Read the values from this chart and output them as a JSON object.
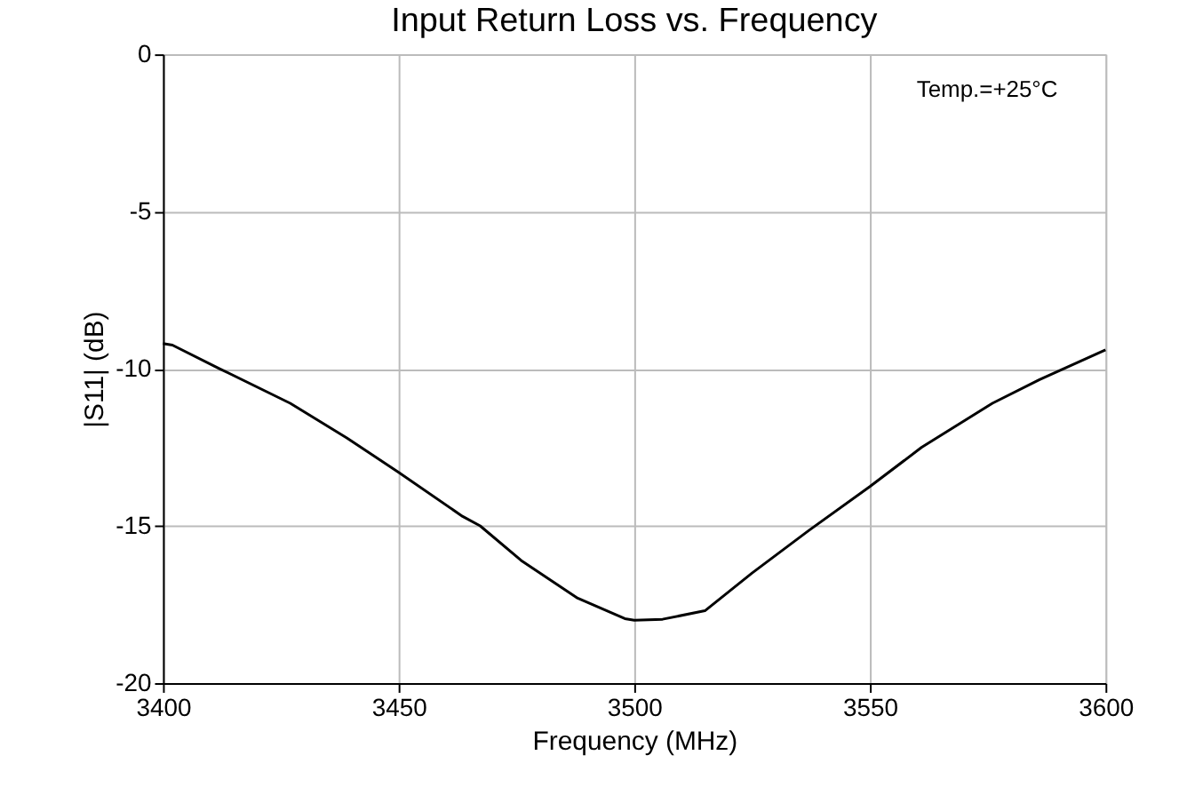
{
  "chart_data": {
    "type": "line",
    "title": "Input Return Loss vs. Frequency",
    "xlabel": "Frequency (MHz)",
    "ylabel": "|S11| (dB)",
    "annotations": [
      "Temp.=+25°C"
    ],
    "series": [
      {
        "color": "#000000",
        "x": [
          3400,
          3402,
          3412,
          3427,
          3439,
          3450,
          3463.6,
          3467.3,
          3476,
          3488,
          3498,
          3500,
          3506,
          3515,
          3525,
          3537,
          3550,
          3561,
          3576,
          3586,
          3600
        ],
        "values": [
          -9.2,
          -9.25,
          -10.0,
          -11.1,
          -12.2,
          -13.3,
          -14.7,
          -15.0,
          -16.1,
          -17.3,
          -17.95,
          -18.0,
          -17.97,
          -17.7,
          -16.5,
          -15.15,
          -13.75,
          -12.5,
          -11.1,
          -10.35,
          -9.4
        ]
      }
    ],
    "xlim": [
      3400,
      3600
    ],
    "xticks": [
      3400,
      3450,
      3500,
      3550,
      3600
    ],
    "ylim": [
      -20,
      0
    ],
    "yticks": [
      -20,
      -15,
      -10,
      -5,
      0
    ],
    "grid": true,
    "marker": "none",
    "line_style": "solid"
  }
}
